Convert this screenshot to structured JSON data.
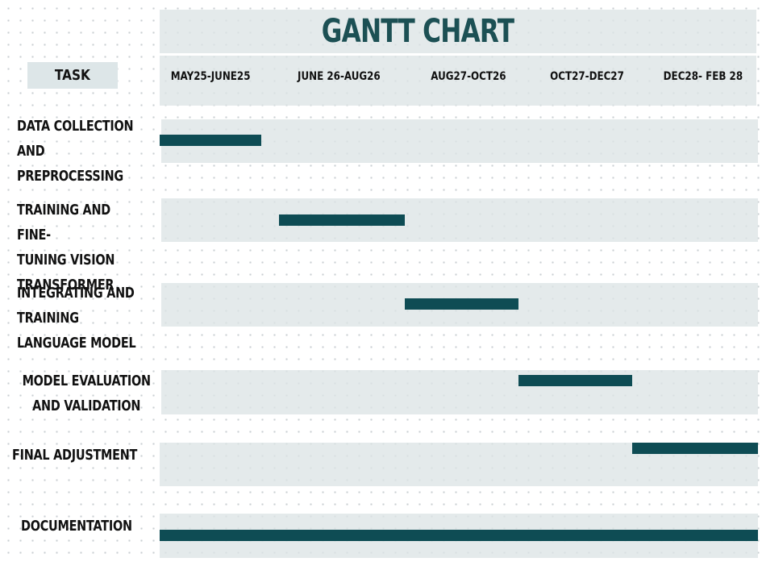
{
  "chart_data": {
    "type": "gantt",
    "title": "GANTT CHART",
    "task_header": "TASK",
    "periods": [
      "MAY25-JUNE25",
      "JUNE 26-AUG26",
      "AUG27-OCT26",
      "OCT27-DEC27",
      "DEC28- FEB 28"
    ],
    "tasks": [
      {
        "name": "DATA COLLECTION\nAND\nPREPROCESSING",
        "start": 0.0,
        "end": 0.85
      },
      {
        "name": "TRAINING AND FINE-\nTUNING VISION\nTRANSFORMER",
        "start": 1.0,
        "end": 2.05
      },
      {
        "name": "INTEGRATING AND\nTRAINING\nLANGUAGE MODEL",
        "start": 2.05,
        "end": 3.0
      },
      {
        "name": "MODEL EVALUATION\nAND VALIDATION",
        "start": 3.0,
        "end": 3.95
      },
      {
        "name": "FINAL ADJUSTMENT",
        "start": 3.95,
        "end": 5.0
      },
      {
        "name": "DOCUMENTATION",
        "start": 0.0,
        "end": 5.0
      }
    ],
    "bar_color": "#0e4c54",
    "title_color": "#1c5054",
    "band_color": "#dde6e8"
  }
}
